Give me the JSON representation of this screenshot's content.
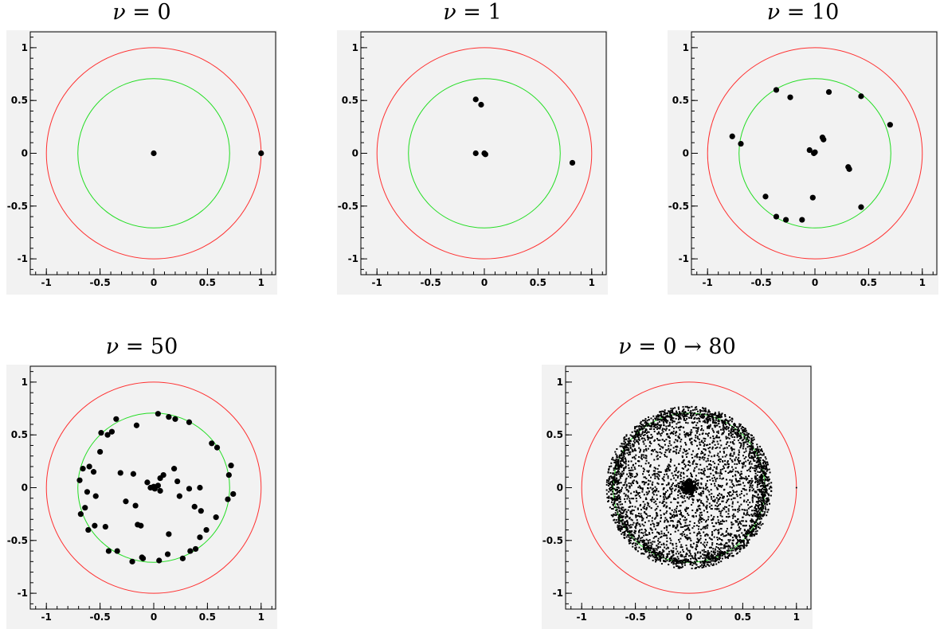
{
  "colors": {
    "outer_circle": "#ff3030",
    "inner_circle": "#22dd22",
    "frame_bg": "#f2f2f2",
    "point": "#000000"
  },
  "chart_data": [
    {
      "type": "scatter",
      "title": "ν = 0",
      "title_symbol": "ν",
      "title_rest": " = 0",
      "xlim": [
        -1.15,
        1.15
      ],
      "ylim": [
        -1.15,
        1.15
      ],
      "xticks": [
        "-1",
        "-0.5",
        "0",
        "0.5",
        "1"
      ],
      "yticks": [
        "1",
        "0.5",
        "0",
        "-0.5",
        "-1"
      ],
      "circles": [
        {
          "name": "outer",
          "radius": 1.0
        },
        {
          "name": "inner",
          "radius": 0.707
        }
      ],
      "points": [
        [
          0,
          0
        ],
        [
          1.0,
          0
        ]
      ]
    },
    {
      "type": "scatter",
      "title": "ν = 1",
      "title_symbol": "ν",
      "title_rest": " = 1",
      "xlim": [
        -1.15,
        1.15
      ],
      "ylim": [
        -1.15,
        1.15
      ],
      "xticks": [
        "-1",
        "-0.5",
        "0",
        "0.5",
        "1"
      ],
      "yticks": [
        "1",
        "0.5",
        "0",
        "-0.5",
        "-1"
      ],
      "circles": [
        {
          "name": "outer",
          "radius": 1.0
        },
        {
          "name": "inner",
          "radius": 0.707
        }
      ],
      "points": [
        [
          -0.08,
          0.51
        ],
        [
          -0.03,
          0.46
        ],
        [
          -0.08,
          0.0
        ],
        [
          0.0,
          0.0
        ],
        [
          0.01,
          -0.01
        ],
        [
          0.82,
          -0.09
        ]
      ]
    },
    {
      "type": "scatter",
      "title": "ν = 10",
      "title_symbol": "ν",
      "title_rest": " = 10",
      "xlim": [
        -1.15,
        1.15
      ],
      "ylim": [
        -1.15,
        1.15
      ],
      "xticks": [
        "-1",
        "-0.5",
        "0",
        "0.5",
        "1"
      ],
      "yticks": [
        "1",
        "0.5",
        "0",
        "-0.5",
        "-1"
      ],
      "circles": [
        {
          "name": "outer",
          "radius": 1.0
        },
        {
          "name": "inner",
          "radius": 0.707
        }
      ],
      "points": [
        [
          -0.77,
          0.16
        ],
        [
          -0.69,
          0.09
        ],
        [
          -0.36,
          0.6
        ],
        [
          -0.23,
          0.53
        ],
        [
          0.13,
          0.58
        ],
        [
          0.43,
          0.54
        ],
        [
          0.7,
          0.27
        ],
        [
          -0.05,
          0.03
        ],
        [
          0.0,
          0.01
        ],
        [
          -0.01,
          0.0
        ],
        [
          0.07,
          0.15
        ],
        [
          0.08,
          0.13
        ],
        [
          0.31,
          -0.13
        ],
        [
          0.32,
          -0.15
        ],
        [
          -0.02,
          -0.42
        ],
        [
          -0.46,
          -0.41
        ],
        [
          -0.36,
          -0.6
        ],
        [
          -0.27,
          -0.63
        ],
        [
          -0.12,
          -0.63
        ],
        [
          0.43,
          -0.51
        ]
      ]
    },
    {
      "type": "scatter",
      "title": "ν = 50",
      "title_symbol": "ν",
      "title_rest": " = 50",
      "xlim": [
        -1.15,
        1.15
      ],
      "ylim": [
        -1.15,
        1.15
      ],
      "xticks": [
        "-1",
        "-0.5",
        "0",
        "0.5",
        "1"
      ],
      "yticks": [
        "1",
        "0.5",
        "0",
        "-0.5",
        "-1"
      ],
      "circles": [
        {
          "name": "outer",
          "radius": 1.0
        },
        {
          "name": "inner",
          "radius": 0.707
        }
      ],
      "points": [
        [
          -0.69,
          0.07
        ],
        [
          -0.66,
          0.18
        ],
        [
          -0.6,
          0.2
        ],
        [
          -0.56,
          0.15
        ],
        [
          -0.5,
          0.34
        ],
        [
          -0.49,
          0.52
        ],
        [
          -0.43,
          0.5
        ],
        [
          -0.39,
          0.53
        ],
        [
          -0.35,
          0.65
        ],
        [
          -0.16,
          0.59
        ],
        [
          0.04,
          0.7
        ],
        [
          0.14,
          0.67
        ],
        [
          0.2,
          0.65
        ],
        [
          0.33,
          0.62
        ],
        [
          0.54,
          0.42
        ],
        [
          0.59,
          0.38
        ],
        [
          0.72,
          0.21
        ],
        [
          0.7,
          0.12
        ],
        [
          0.74,
          -0.06
        ],
        [
          0.69,
          -0.11
        ],
        [
          0.58,
          -0.28
        ],
        [
          0.49,
          -0.4
        ],
        [
          0.43,
          -0.47
        ],
        [
          0.39,
          -0.58
        ],
        [
          0.34,
          -0.6
        ],
        [
          0.27,
          -0.67
        ],
        [
          0.13,
          -0.63
        ],
        [
          0.05,
          -0.69
        ],
        [
          -0.1,
          -0.67
        ],
        [
          -0.11,
          -0.66
        ],
        [
          -0.2,
          -0.7
        ],
        [
          -0.34,
          -0.6
        ],
        [
          -0.42,
          -0.6
        ],
        [
          -0.61,
          -0.4
        ],
        [
          -0.64,
          -0.19
        ],
        [
          -0.68,
          -0.25
        ],
        [
          -0.55,
          -0.36
        ],
        [
          -0.45,
          -0.37
        ],
        [
          -0.31,
          0.14
        ],
        [
          -0.19,
          0.13
        ],
        [
          -0.62,
          -0.04
        ],
        [
          -0.54,
          -0.08
        ],
        [
          -0.26,
          -0.13
        ],
        [
          -0.17,
          -0.17
        ],
        [
          -0.15,
          -0.35
        ],
        [
          -0.12,
          -0.36
        ],
        [
          -0.06,
          0.05
        ],
        [
          -0.03,
          0.0
        ],
        [
          0.0,
          0.01
        ],
        [
          0.01,
          -0.01
        ],
        [
          0.04,
          0.02
        ],
        [
          0.06,
          -0.03
        ],
        [
          0.06,
          0.09
        ],
        [
          0.09,
          0.12
        ],
        [
          0.19,
          0.18
        ],
        [
          0.22,
          0.06
        ],
        [
          0.24,
          -0.08
        ],
        [
          0.33,
          -0.01
        ],
        [
          0.43,
          0.0
        ],
        [
          0.38,
          -0.18
        ],
        [
          0.44,
          -0.22
        ],
        [
          0.14,
          -0.44
        ]
      ]
    },
    {
      "type": "scatter",
      "title": "ν = 0 → 80",
      "title_symbol": "ν",
      "title_rest": " = 0 → 80",
      "xlim": [
        -1.15,
        1.15
      ],
      "ylim": [
        -1.15,
        1.15
      ],
      "xticks": [
        "-1",
        "-0.5",
        "0",
        "0.5",
        "1"
      ],
      "yticks": [
        "1",
        "0.5",
        "0",
        "-0.5",
        "-1"
      ],
      "circles": [
        {
          "name": "outer",
          "radius": 1.0
        },
        {
          "name": "inner",
          "radius": 0.707
        }
      ],
      "dense_cloud": {
        "count": 4000,
        "radius": 0.707,
        "spread": 0.06,
        "central_cluster_radius": 0.08,
        "central_count": 500
      },
      "points": [
        [
          1.0,
          0.0
        ]
      ]
    }
  ]
}
